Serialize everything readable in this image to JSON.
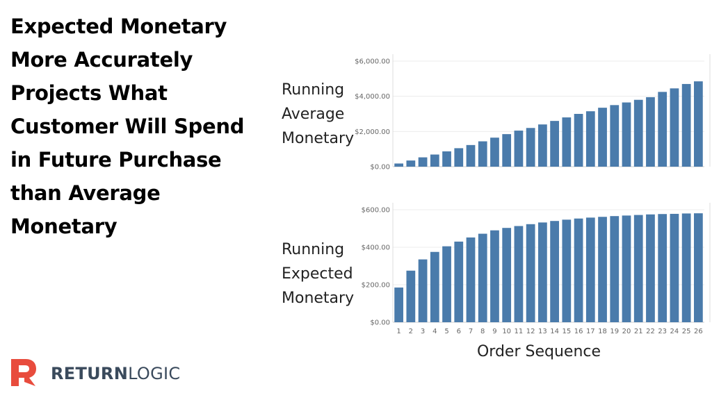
{
  "headline": [
    "Expected Monetary",
    "More Accurately",
    "Projects What",
    "Customer Will Spend",
    "in Future Purchase",
    "than Average",
    "Monetary"
  ],
  "brand": {
    "bold": "RETURN",
    "light": "LOGIC",
    "color": "#e84c3d"
  },
  "bar_color": "#4a7bab",
  "chart_data": [
    {
      "type": "bar",
      "title": "",
      "row_label": [
        "Running",
        "Average",
        "Monetary"
      ],
      "xlabel": "Order Sequence",
      "ylabel": "",
      "categories": [
        "1",
        "2",
        "3",
        "4",
        "5",
        "6",
        "7",
        "8",
        "9",
        "10",
        "11",
        "12",
        "13",
        "14",
        "15",
        "16",
        "17",
        "18",
        "19",
        "20",
        "21",
        "22",
        "23",
        "24",
        "25",
        "26"
      ],
      "values": [
        180,
        350,
        530,
        690,
        870,
        1050,
        1230,
        1440,
        1650,
        1850,
        2050,
        2200,
        2400,
        2600,
        2800,
        3000,
        3150,
        3350,
        3500,
        3650,
        3800,
        3950,
        4250,
        4450,
        4700,
        4850
      ],
      "ylim": [
        0,
        6000
      ],
      "yticks": [
        "$0.00",
        "$2,000.00",
        "$4,000.00",
        "$6,000.00"
      ],
      "ytick_values": [
        0,
        2000,
        4000,
        6000
      ],
      "grid": true,
      "show_x_ticks": false
    },
    {
      "type": "bar",
      "title": "",
      "row_label": [
        "Running",
        "Expected",
        "Monetary"
      ],
      "xlabel": "Order Sequence",
      "ylabel": "",
      "categories": [
        "1",
        "2",
        "3",
        "4",
        "5",
        "6",
        "7",
        "8",
        "9",
        "10",
        "11",
        "12",
        "13",
        "14",
        "15",
        "16",
        "17",
        "18",
        "19",
        "20",
        "21",
        "22",
        "23",
        "24",
        "25",
        "26"
      ],
      "values": [
        185,
        275,
        335,
        375,
        405,
        430,
        452,
        472,
        490,
        503,
        513,
        523,
        532,
        540,
        547,
        553,
        558,
        562,
        566,
        569,
        572,
        575,
        577,
        578,
        580,
        581
      ],
      "ylim": [
        0,
        600
      ],
      "yticks": [
        "$0.00",
        "$200.00",
        "$400.00",
        "$600.00"
      ],
      "ytick_values": [
        0,
        200,
        400,
        600
      ],
      "grid": true,
      "show_x_ticks": true
    }
  ]
}
